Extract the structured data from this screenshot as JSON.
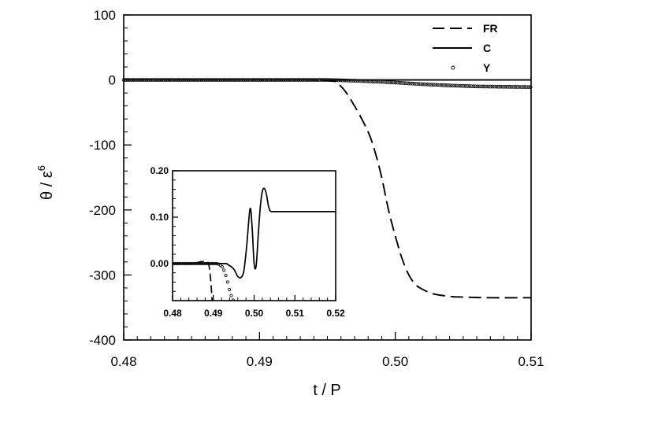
{
  "chart_data": [
    {
      "id": "main",
      "type": "line",
      "title": "",
      "xlabel": "t / P",
      "ylabel_main": "θ / ε",
      "ylabel_superscript": "6",
      "xlim": [
        0.48,
        0.51
      ],
      "ylim": [
        -400,
        100
      ],
      "x_ticks": [
        0.48,
        0.49,
        0.5,
        0.51
      ],
      "x_tick_labels": [
        "0.48",
        "0.49",
        "0.50",
        "0.51"
      ],
      "y_ticks": [
        100,
        0,
        -100,
        -200,
        -300,
        -400
      ],
      "y_tick_labels": [
        "100",
        "0",
        "-100",
        "-200",
        "-300",
        "-400"
      ],
      "grid": false,
      "legend": {
        "placement": "top-right",
        "entries": [
          {
            "label": "FR",
            "style": "dashed"
          },
          {
            "label": "C",
            "style": "solid"
          },
          {
            "label": "Y",
            "style": "circle-markers"
          }
        ]
      },
      "series": [
        {
          "name": "FR",
          "style": "dashed",
          "x": [
            0.48,
            0.49,
            0.495,
            0.496,
            0.497,
            0.498,
            0.4985,
            0.499,
            0.4995,
            0.5,
            0.5005,
            0.501,
            0.5015,
            0.502,
            0.5025,
            0.503,
            0.504,
            0.505,
            0.507,
            0.51
          ],
          "y": [
            0,
            0,
            -1,
            -10,
            -40,
            -80,
            -110,
            -150,
            -200,
            -240,
            -275,
            -300,
            -315,
            -322,
            -327,
            -330,
            -333,
            -334,
            -335,
            -335
          ]
        },
        {
          "name": "C",
          "style": "solid",
          "x": [
            0.48,
            0.51
          ],
          "y": [
            0,
            0
          ]
        },
        {
          "name": "Y",
          "style": "circle-markers",
          "x": [
            0.48,
            0.495,
            0.496,
            0.498,
            0.5,
            0.502,
            0.504,
            0.506,
            0.508,
            0.51
          ],
          "y": [
            0,
            0,
            -0.5,
            -2,
            -4,
            -6.5,
            -8.5,
            -10,
            -10.5,
            -11
          ]
        }
      ]
    },
    {
      "id": "inset",
      "type": "line",
      "title": "",
      "xlabel": "",
      "ylabel": "",
      "xlim": [
        0.48,
        0.52
      ],
      "ylim": [
        -0.08,
        0.2
      ],
      "x_ticks": [
        0.48,
        0.49,
        0.5,
        0.51,
        0.52
      ],
      "x_tick_labels": [
        "0.48",
        "0.49",
        "0.50",
        "0.51",
        "0.52"
      ],
      "y_ticks": [
        0.2,
        0.1,
        0.0
      ],
      "y_tick_labels": [
        "0.20",
        "0.10",
        "0.00"
      ],
      "grid": false,
      "series": [
        {
          "name": "FR",
          "style": "dashed",
          "x": [
            0.48,
            0.485,
            0.486,
            0.4865,
            0.487,
            0.488,
            0.4888,
            0.4893,
            0.4897
          ],
          "y": [
            0,
            0,
            0.002,
            0.003,
            0.004,
            0.004,
            0.0,
            -0.03,
            -0.08
          ]
        },
        {
          "name": "C",
          "style": "solid",
          "x": [
            0.48,
            0.492,
            0.4935,
            0.495,
            0.496,
            0.4968,
            0.4975,
            0.4982,
            0.499,
            0.4995,
            0.5,
            0.5005,
            0.501,
            0.5015,
            0.502,
            0.5025,
            0.503,
            0.5035,
            0.504,
            0.505,
            0.507,
            0.51,
            0.52
          ],
          "y": [
            0,
            0,
            -0.002,
            -0.012,
            -0.028,
            -0.03,
            -0.015,
            0.04,
            0.118,
            0.08,
            0.0,
            -0.005,
            0.06,
            0.12,
            0.155,
            0.162,
            0.15,
            0.125,
            0.113,
            0.112,
            0.112,
            0.112,
            0.112
          ]
        },
        {
          "name": "Y",
          "style": "circle-markers",
          "x": [
            0.48,
            0.491,
            0.492,
            0.4925,
            0.493,
            0.4935,
            0.494,
            0.4945,
            0.495
          ],
          "y": [
            0,
            0,
            -0.005,
            -0.012,
            -0.024,
            -0.04,
            -0.058,
            -0.072,
            -0.082
          ]
        }
      ]
    }
  ]
}
